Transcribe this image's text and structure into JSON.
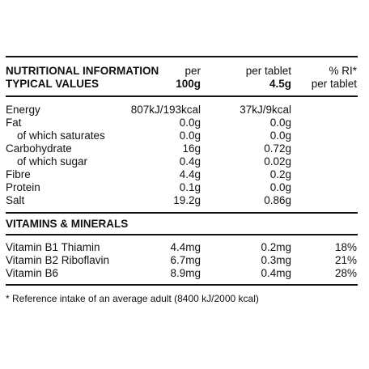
{
  "header": {
    "title_line1": "NUTRITIONAL INFORMATION",
    "title_line2": "TYPICAL VALUES",
    "col1_line1": "per",
    "col1_line2": "100g",
    "col2_line1": "per tablet",
    "col2_line2": "4.5g",
    "col3_line1": "% RI*",
    "col3_line2": "per tablet"
  },
  "nutrients": [
    {
      "name": "Energy",
      "per100": "807kJ/193kcal",
      "perTablet": "37kJ/9kcal"
    },
    {
      "name": "Fat",
      "per100": "0.0g",
      "perTablet": "0.0g"
    },
    {
      "name": "of which saturates",
      "per100": "0.0g",
      "perTablet": "0.0g"
    },
    {
      "name": "Carbohydrate",
      "per100": "16g",
      "perTablet": "0.72g"
    },
    {
      "name": "of which sugar",
      "per100": "0.4g",
      "perTablet": "0.02g"
    },
    {
      "name": "Fibre",
      "per100": "4.4g",
      "perTablet": "0.2g"
    },
    {
      "name": "Protein",
      "per100": "0.1g",
      "perTablet": "0.0g"
    },
    {
      "name": "Salt",
      "per100": "19.2g",
      "perTablet": "0.86g"
    }
  ],
  "vitamins_heading": "VITAMINS & MINERALS",
  "vitamins": [
    {
      "name": "Vitamin B1 Thiamin",
      "per100": "4.4mg",
      "perTablet": "0.2mg",
      "ri": "18%"
    },
    {
      "name": "Vitamin B2 Riboflavin",
      "per100": "6.7mg",
      "perTablet": "0.3mg",
      "ri": "21%"
    },
    {
      "name": "Vitamin B6",
      "per100": "8.9mg",
      "perTablet": "0.4mg",
      "ri": "28%"
    }
  ],
  "footnote": "* Reference intake of an average adult (8400 kJ/2000 kcal)"
}
